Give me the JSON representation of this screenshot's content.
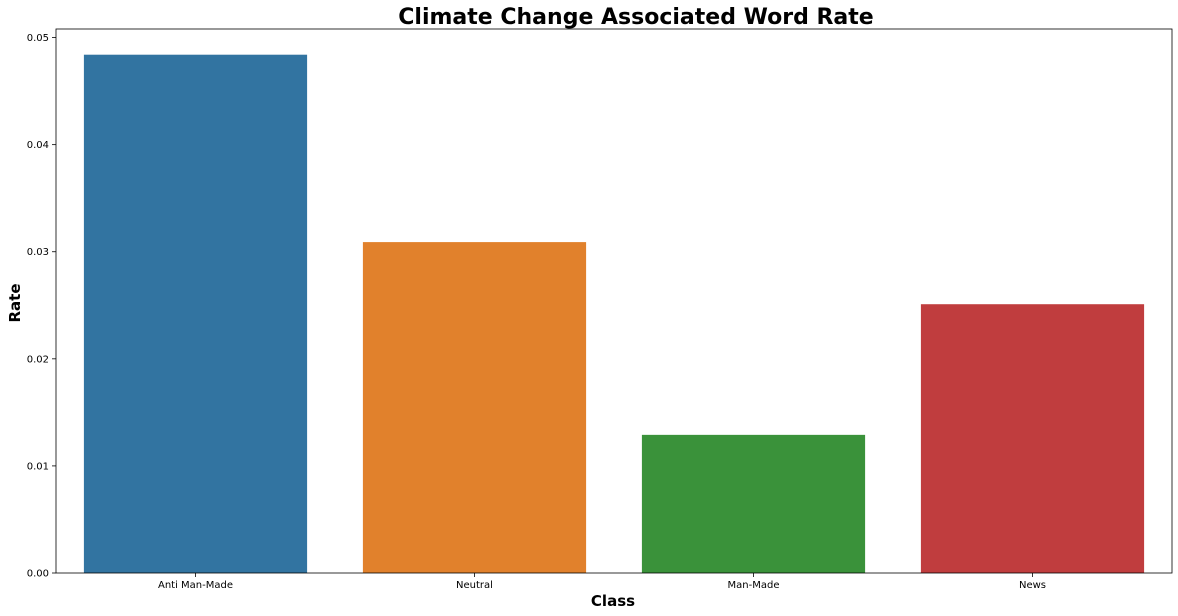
{
  "chart_data": {
    "type": "bar",
    "title": "Climate Change Associated Word Rate",
    "xlabel": "Class",
    "ylabel": "Rate",
    "categories": [
      "Anti Man-Made",
      "Neutral",
      "Man-Made",
      "News"
    ],
    "values": [
      0.0484,
      0.0309,
      0.0129,
      0.0251
    ],
    "colors": [
      "#3274a1",
      "#e1812c",
      "#3a923a",
      "#c03d3e"
    ],
    "ylim": [
      0,
      0.0508
    ],
    "yticks": [
      0.0,
      0.01,
      0.02,
      0.03,
      0.04,
      0.05
    ],
    "ytick_labels": [
      "0.00",
      "0.01",
      "0.02",
      "0.03",
      "0.04",
      "0.05"
    ],
    "grid": false,
    "legend": "none"
  }
}
